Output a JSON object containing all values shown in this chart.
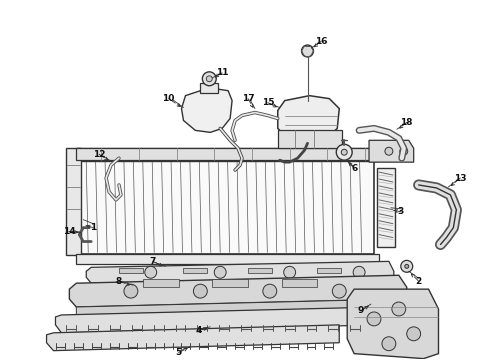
{
  "bg_color": "#ffffff",
  "line_color": "#333333",
  "label_color": "#111111",
  "label_fontsize": 6.5,
  "fig_width": 4.9,
  "fig_height": 3.6,
  "dpi": 100
}
